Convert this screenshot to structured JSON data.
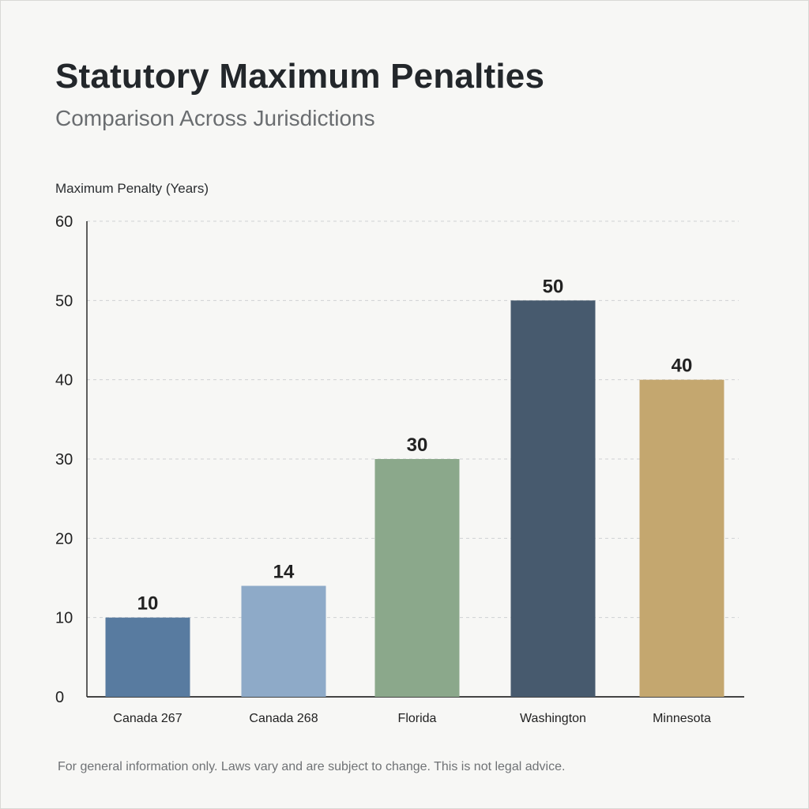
{
  "chart_data": {
    "type": "bar",
    "title": "Statutory Maximum Penalties",
    "subtitle": "Comparison Across Jurisdictions",
    "ylabel": "Maximum Penalty (Years)",
    "xlabel": "",
    "categories": [
      "Canada 267",
      "Canada 268",
      "Florida",
      "Washington",
      "Minnesota"
    ],
    "values": [
      10,
      14,
      30,
      50,
      40
    ],
    "colors": [
      "#587ba0",
      "#8eaac8",
      "#8ba88b",
      "#475a6e",
      "#c4a76f"
    ],
    "ylim": [
      0,
      60
    ],
    "yticks": [
      0,
      10,
      20,
      30,
      40,
      50,
      60
    ],
    "grid": true,
    "data_labels": true,
    "footnote": "For general information only. Laws vary and are subject to change. This is not legal advice."
  }
}
